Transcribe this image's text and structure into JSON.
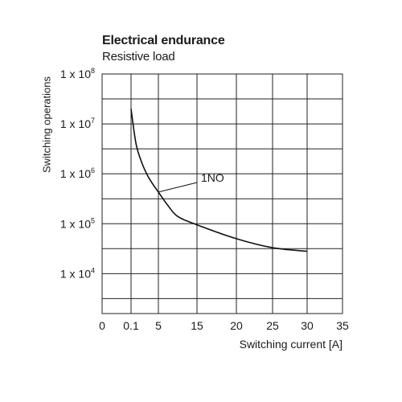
{
  "chart_data": {
    "type": "line",
    "title": "Electrical endurance",
    "subtitle": "Resistive load",
    "xlabel": "Switching current [A]",
    "ylabel": "Switching operations",
    "x_ticks": [
      "0",
      "0.1",
      "5",
      "15",
      "20",
      "25",
      "30",
      "35"
    ],
    "y_ticks": [
      {
        "base": "1 x 10",
        "exp": "8"
      },
      {
        "base": "1 x 10",
        "exp": "7"
      },
      {
        "base": "1 x 10",
        "exp": "6"
      },
      {
        "base": "1 x 10",
        "exp": "5"
      },
      {
        "base": "1 x 10",
        "exp": "4"
      }
    ],
    "y_scale": "log",
    "grid": true,
    "series": [
      {
        "name": "1NO",
        "points": [
          {
            "x": 0.1,
            "y": 20000000
          },
          {
            "x": 1,
            "y": 4000000
          },
          {
            "x": 2,
            "y": 1700000
          },
          {
            "x": 3,
            "y": 950000
          },
          {
            "x": 4,
            "y": 620000
          },
          {
            "x": 5,
            "y": 430000
          },
          {
            "x": 7.5,
            "y": 230000
          },
          {
            "x": 10,
            "y": 140000
          },
          {
            "x": 15,
            "y": 95000
          },
          {
            "x": 20,
            "y": 50000
          },
          {
            "x": 25,
            "y": 33000
          },
          {
            "x": 30,
            "y": 28000
          }
        ]
      }
    ]
  }
}
